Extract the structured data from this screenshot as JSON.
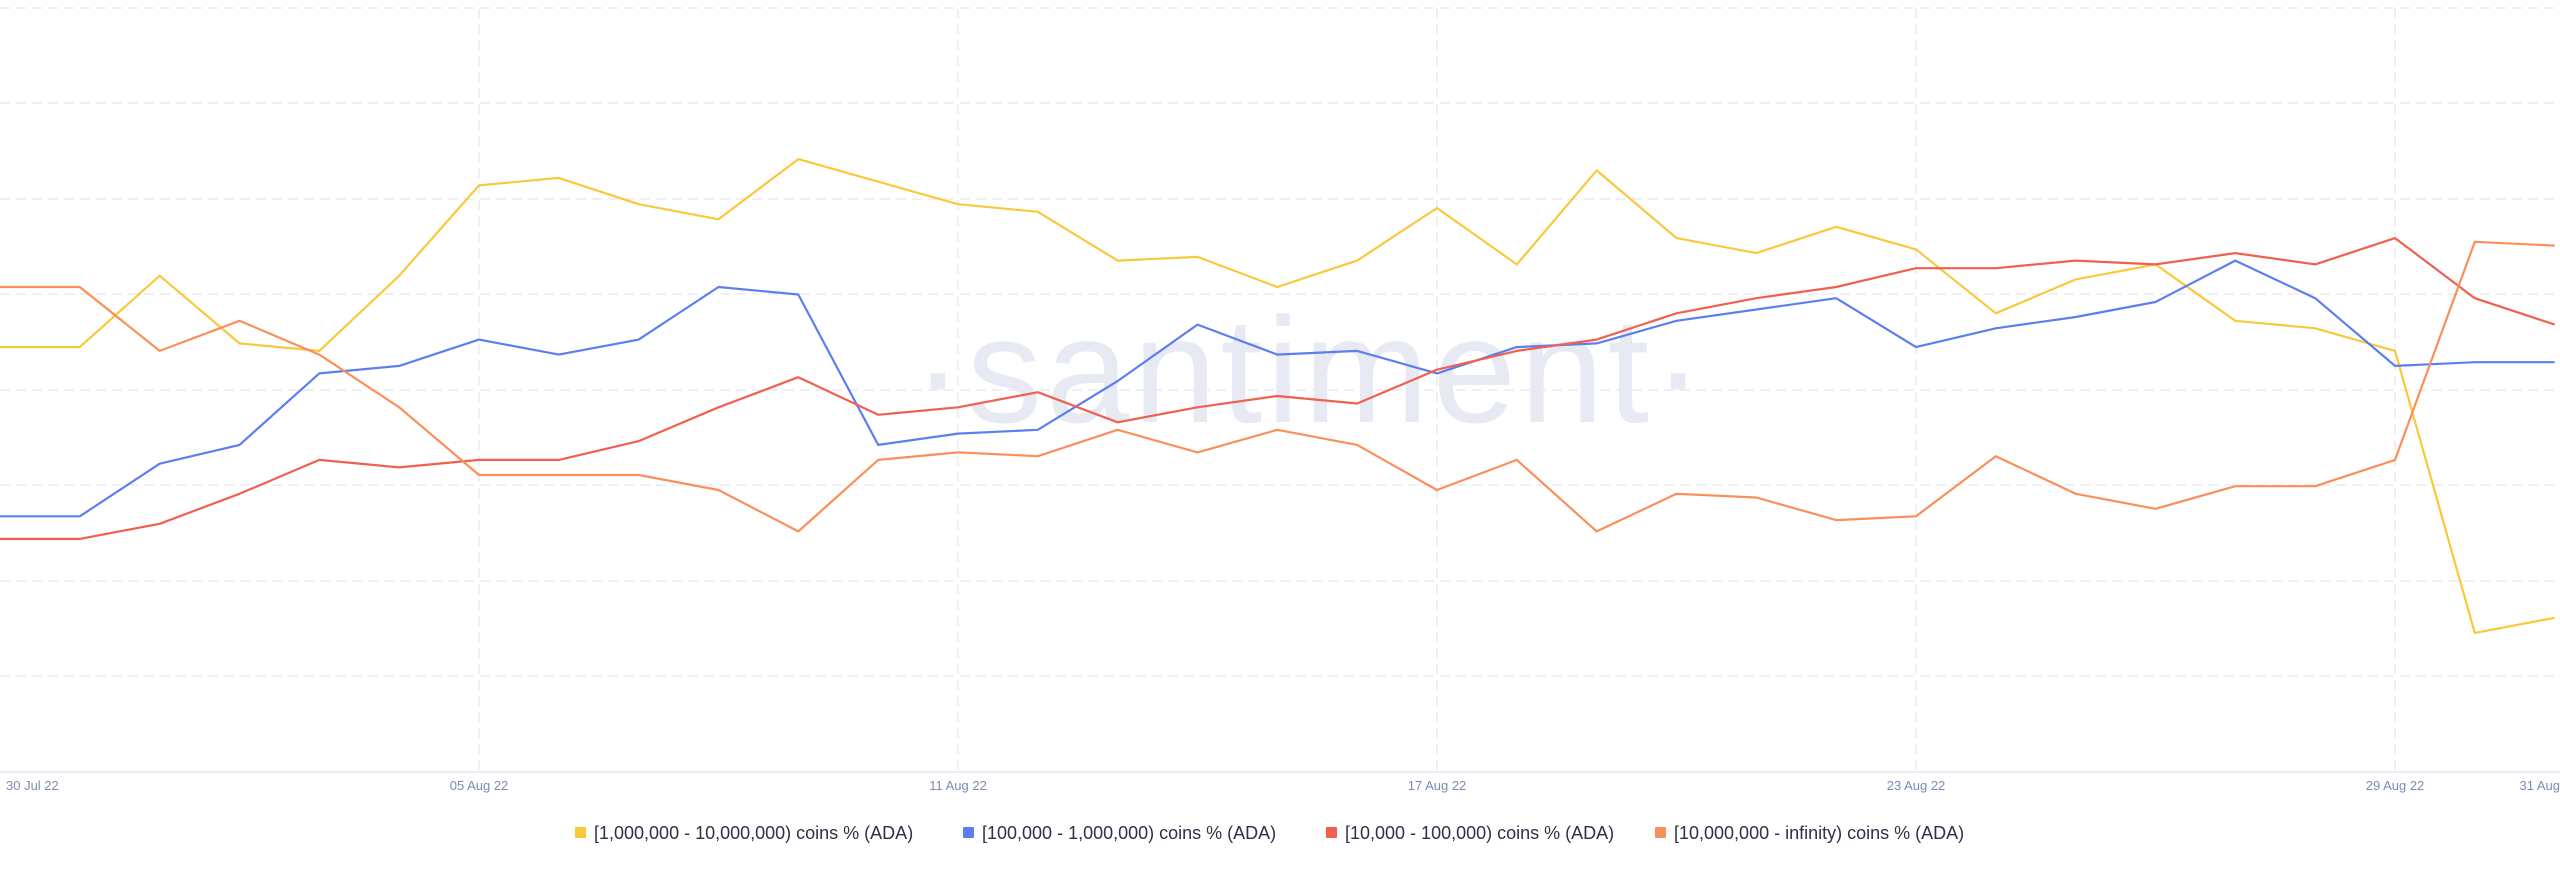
{
  "watermark": "·santiment·",
  "chart_data": {
    "type": "line",
    "title": "",
    "xlabel": "",
    "ylabel": "",
    "x": [
      "30 Jul 22",
      "31 Jul 22",
      "01 Aug 22",
      "02 Aug 22",
      "03 Aug 22",
      "04 Aug 22",
      "05 Aug 22",
      "06 Aug 22",
      "07 Aug 22",
      "08 Aug 22",
      "09 Aug 22",
      "10 Aug 22",
      "11 Aug 22",
      "12 Aug 22",
      "13 Aug 22",
      "14 Aug 22",
      "15 Aug 22",
      "16 Aug 22",
      "17 Aug 22",
      "18 Aug 22",
      "19 Aug 22",
      "20 Aug 22",
      "21 Aug 22",
      "22 Aug 22",
      "23 Aug 22",
      "24 Aug 22",
      "25 Aug 22",
      "26 Aug 22",
      "27 Aug 22",
      "28 Aug 22",
      "29 Aug 22",
      "30 Aug 22",
      "31 Aug 22"
    ],
    "x_ticks": [
      {
        "label": "30 Jul 22",
        "index": 0
      },
      {
        "label": "05 Aug 22",
        "index": 6
      },
      {
        "label": "11 Aug 22",
        "index": 12
      },
      {
        "label": "17 Aug 22",
        "index": 18
      },
      {
        "label": "23 Aug 22",
        "index": 24
      },
      {
        "label": "29 Aug 22",
        "index": 30
      },
      {
        "label": "31 Aug",
        "index": 32
      }
    ],
    "ylim": [
      0,
      100
    ],
    "y_axis_labels_shown": false,
    "grid": true,
    "legend_position": "bottom",
    "series": [
      {
        "name": "[1,000,000 - 10,000,000) coins % (ADA)",
        "color": "#f9c93c",
        "values": [
          56.5,
          56.5,
          66,
          57,
          56,
          66,
          78,
          79,
          75.5,
          73.5,
          81.5,
          78.5,
          75.5,
          74.5,
          68,
          68.5,
          64.5,
          68,
          75,
          67.5,
          80,
          71,
          69,
          72.5,
          69.5,
          61,
          65.5,
          67.5,
          60,
          59,
          56,
          18.5,
          20.5
        ]
      },
      {
        "name": "[100,000  - 1,000,000) coins % (ADA)",
        "color": "#5b7ff0",
        "values": [
          34,
          34,
          41,
          43.5,
          53,
          54,
          57.5,
          55.5,
          57.5,
          64.5,
          63.5,
          43.5,
          45,
          45.5,
          52,
          59.5,
          55.5,
          56,
          53,
          56.5,
          57,
          60,
          61.5,
          63,
          56.5,
          59,
          60.5,
          62.5,
          68,
          63,
          54,
          54.5,
          54.5
        ]
      },
      {
        "name": "[10,000 - 100,000) coins % (ADA)",
        "color": "#f1604f",
        "values": [
          31,
          31,
          33,
          37,
          41.5,
          40.5,
          41.5,
          41.5,
          44,
          48.5,
          52.5,
          47.5,
          48.5,
          50.5,
          46.5,
          48.5,
          50,
          49,
          53.5,
          56,
          57.5,
          61,
          63,
          64.5,
          67,
          67,
          68,
          67.5,
          69,
          67.5,
          71,
          63,
          59.5
        ]
      },
      {
        "name": "[10,000,000 - infinity) coins % (ADA)",
        "color": "#fa8f5a",
        "values": [
          64.5,
          64.5,
          56,
          60,
          55.5,
          48.5,
          39.5,
          39.5,
          39.5,
          37.5,
          32,
          41.5,
          42.5,
          42,
          45.5,
          42.5,
          45.5,
          43.5,
          37.5,
          41.5,
          32,
          37,
          36.5,
          33.5,
          34,
          42,
          37,
          35,
          38,
          38,
          41.5,
          70.5,
          70
        ]
      }
    ]
  }
}
